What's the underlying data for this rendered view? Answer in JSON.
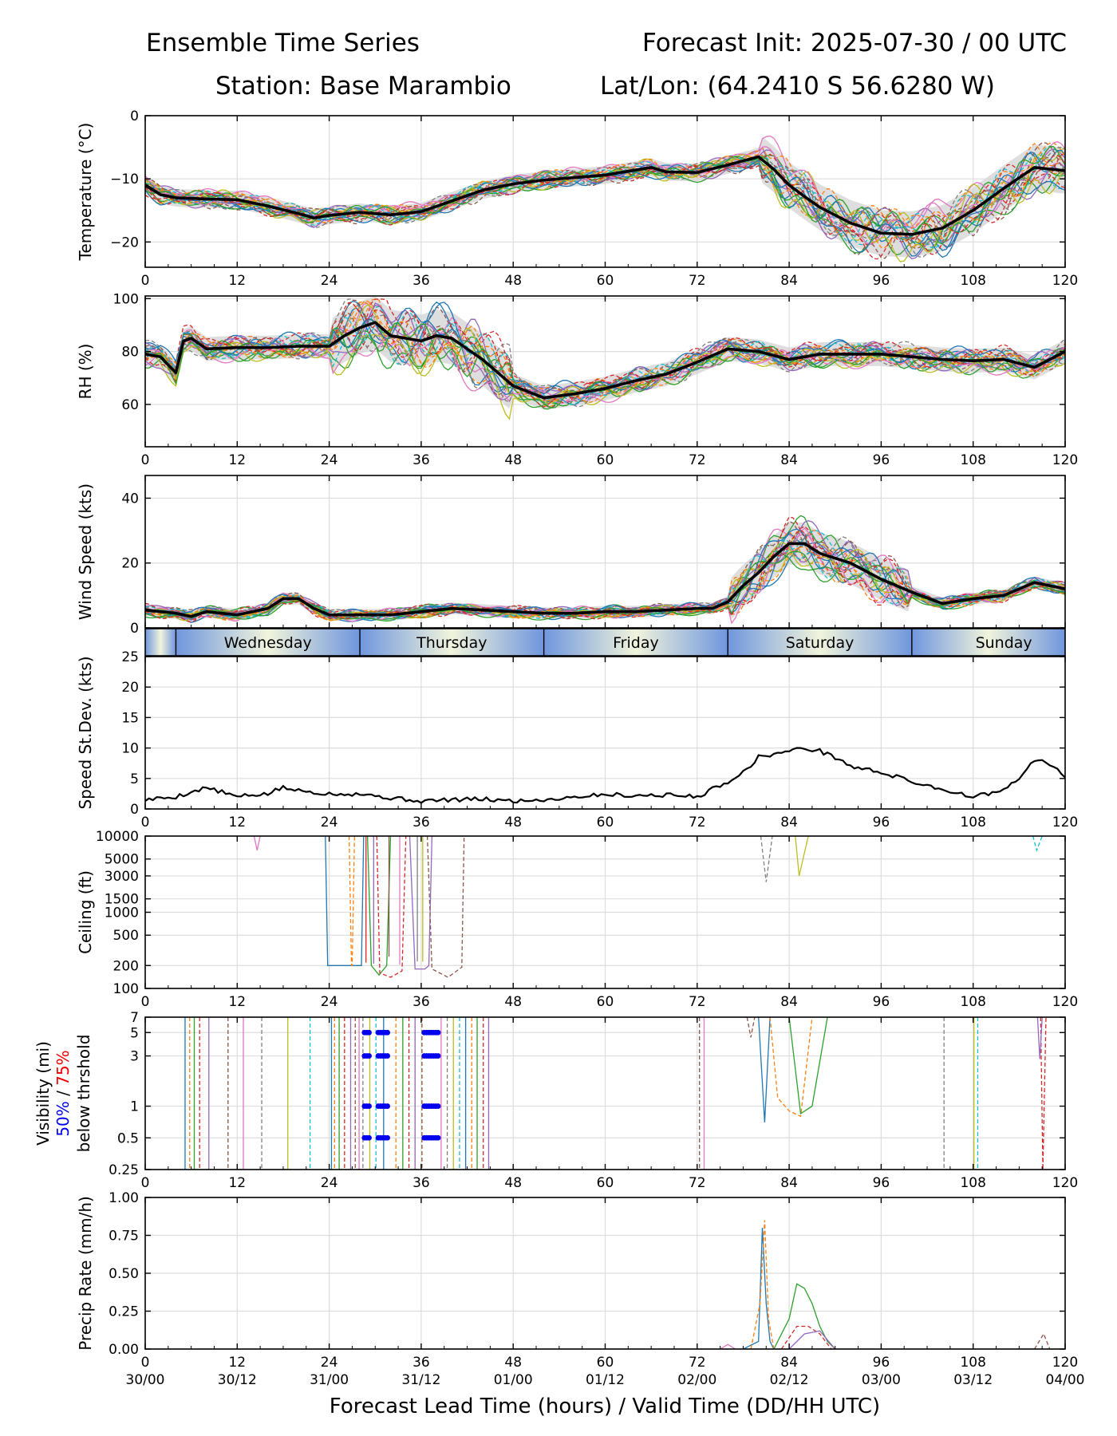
{
  "titles": {
    "left1": "Ensemble Time Series",
    "right1": "Forecast Init: 2025-07-30 / 00 UTC",
    "left2": "Station: Base Marambio",
    "right2": "Lat/Lon: (64.2410 S 56.6280 W)"
  },
  "x_axis": {
    "range": [
      0,
      120
    ],
    "ticks": [
      0,
      12,
      24,
      36,
      48,
      60,
      72,
      84,
      96,
      108,
      120
    ],
    "valid_time_labels": [
      "30/00",
      "30/12",
      "31/00",
      "31/12",
      "01/00",
      "01/12",
      "02/00",
      "02/12",
      "03/00",
      "03/12",
      "04/00"
    ],
    "label": "Forecast Lead Time (hours) / Valid Time (DD/HH UTC)"
  },
  "day_band": {
    "days": [
      {
        "name": "Wednesday",
        "start": 4,
        "end": 28
      },
      {
        "name": "Thursday",
        "start": 28,
        "end": 52
      },
      {
        "name": "Friday",
        "start": 52,
        "end": 76
      },
      {
        "name": "Saturday",
        "start": 76,
        "end": 100
      },
      {
        "name": "Sunday",
        "start": 100,
        "end": 124
      }
    ]
  },
  "member_colors": [
    "#1f77b4",
    "#ff7f0e",
    "#2ca02c",
    "#d62728",
    "#9467bd",
    "#8c564b",
    "#e377c2",
    "#7f7f7f",
    "#bcbd22",
    "#17becf"
  ],
  "chart_data": [
    {
      "type": "line",
      "ylabel": "Temperature (°C)",
      "ylim": [
        -24,
        0
      ],
      "yticks": [
        0,
        -10,
        -20
      ],
      "ytick_labels": [
        "0",
        "−10",
        "−20"
      ],
      "grid": true,
      "spread_shading": true,
      "series": [
        {
          "x": [
            0,
            2,
            4,
            8,
            12,
            16,
            20,
            22,
            24,
            28,
            32,
            36,
            40,
            44,
            48,
            52,
            56,
            60,
            64,
            66,
            68,
            72,
            76,
            80,
            82,
            84,
            86,
            88,
            92,
            96,
            100,
            104,
            108,
            112,
            116,
            120
          ],
          "values": [
            -11,
            -12.5,
            -13,
            -13.2,
            -13.3,
            -14.3,
            -15.5,
            -16.2,
            -15.8,
            -15.3,
            -15.7,
            -15.2,
            -13.5,
            -11.8,
            -10.8,
            -10.2,
            -9.8,
            -9.4,
            -8.6,
            -8.2,
            -8.9,
            -9,
            -7.8,
            -6.5,
            -8.5,
            -11,
            -12.8,
            -14.5,
            -17,
            -18.6,
            -18.8,
            -17.8,
            -15,
            -11.5,
            -8.2,
            -8.7
          ]
        }
      ]
    },
    {
      "type": "line",
      "ylabel": "RH (%)",
      "ylim": [
        44,
        101
      ],
      "yticks": [
        100,
        80,
        60
      ],
      "ytick_labels": [
        "100",
        "80",
        "60"
      ],
      "grid": true,
      "spread_shading": true,
      "series": [
        {
          "x": [
            0,
            2,
            3,
            4,
            5,
            6,
            8,
            12,
            16,
            20,
            24,
            26,
            28,
            30,
            32,
            36,
            38,
            40,
            44,
            48,
            52,
            56,
            60,
            64,
            68,
            72,
            76,
            80,
            84,
            88,
            96,
            104,
            108,
            112,
            116,
            120
          ],
          "values": [
            79,
            78,
            75,
            72,
            84,
            85,
            81,
            81.5,
            81.5,
            82,
            82,
            86,
            89,
            91,
            86,
            84,
            86,
            85,
            77,
            67,
            62.5,
            64,
            66,
            69,
            71.5,
            76,
            81,
            80,
            77,
            79,
            79,
            77,
            76.5,
            77,
            74,
            80
          ]
        }
      ]
    },
    {
      "type": "line",
      "ylabel": "Wind Speed (kts)",
      "ylim": [
        0,
        47
      ],
      "yticks": [
        0,
        20,
        40
      ],
      "ytick_labels": [
        "0",
        "20",
        "40"
      ],
      "grid": true,
      "spread_shading": true,
      "series": [
        {
          "x": [
            0,
            4,
            6,
            8,
            12,
            16,
            18,
            20,
            22,
            24,
            28,
            32,
            36,
            40,
            44,
            48,
            52,
            56,
            60,
            64,
            68,
            72,
            74,
            76,
            78,
            80,
            82,
            84,
            86,
            88,
            92,
            96,
            100,
            104,
            108,
            112,
            116,
            120
          ],
          "values": [
            5.5,
            4.5,
            3.5,
            5,
            4,
            6,
            9,
            9,
            6,
            4,
            4,
            4,
            5,
            6,
            5.5,
            5,
            4.5,
            4.5,
            5,
            5,
            5.5,
            6,
            6,
            8,
            13,
            17,
            22,
            26,
            26,
            23,
            20,
            15,
            11,
            7.5,
            9,
            10,
            14,
            12
          ]
        }
      ]
    },
    {
      "type": "line",
      "ylabel": "Speed St.Dev. (kts)",
      "ylim": [
        0,
        25
      ],
      "yticks": [
        0,
        5,
        10,
        15,
        20,
        25
      ],
      "ytick_labels": [
        "0",
        "5",
        "10",
        "15",
        "20",
        "25"
      ],
      "grid": true,
      "series": [
        {
          "x": [
            0,
            4,
            8,
            12,
            16,
            18,
            20,
            24,
            28,
            32,
            36,
            40,
            44,
            48,
            52,
            56,
            60,
            64,
            68,
            72,
            76,
            78,
            80,
            82,
            84,
            86,
            88,
            90,
            92,
            96,
            100,
            104,
            108,
            112,
            114,
            116,
            118,
            120
          ],
          "values": [
            1.5,
            2,
            3.5,
            2,
            2.5,
            3.5,
            3,
            2.5,
            2.5,
            1.8,
            1.3,
            1.5,
            1.6,
            1.3,
            1.5,
            2,
            2.4,
            2.2,
            2.3,
            2,
            4.5,
            6,
            8.5,
            9,
            9.5,
            10,
            9.5,
            8.5,
            7,
            6,
            4.5,
            3.2,
            2,
            3,
            5,
            8,
            7.5,
            5
          ]
        }
      ]
    },
    {
      "type": "line",
      "scale": "log",
      "ylabel": "Ceiling (ft)",
      "ylim": [
        100,
        10000
      ],
      "yticks": [
        10000,
        5000,
        3000,
        1500,
        1000,
        500,
        200,
        100
      ],
      "ytick_labels": [
        "10000",
        "5000",
        "3000",
        "1500",
        "1000",
        "500",
        "200",
        "100"
      ],
      "grid": true,
      "series": [
        {
          "x": [
            23.5,
            23.8,
            28.2,
            28.5
          ],
          "values": [
            10000,
            200,
            200,
            10000
          ]
        },
        {
          "x": [
            26.6,
            26.9,
            27.0,
            27.3
          ],
          "values": [
            10000,
            200,
            200,
            10000
          ]
        },
        {
          "x": [
            29,
            29.5,
            30.5,
            31.5,
            32
          ],
          "values": [
            10000,
            200,
            150,
            200,
            10000
          ]
        },
        {
          "x": [
            30.2,
            30.6,
            32,
            33.5,
            34
          ],
          "values": [
            10000,
            160,
            140,
            170,
            10000
          ]
        },
        {
          "x": [
            34.5,
            35.2,
            36.5,
            37,
            37.4
          ],
          "values": [
            10000,
            180,
            180,
            200,
            10000
          ]
        },
        {
          "x": [
            36.8,
            37.4,
            39.5,
            41.3,
            41.6
          ],
          "values": [
            10000,
            180,
            140,
            190,
            10000
          ]
        },
        {
          "x": [
            14.2,
            14.6,
            15
          ],
          "values": [
            10000,
            6500,
            10000
          ]
        },
        {
          "x": [
            80.3,
            81,
            81.8
          ],
          "values": [
            10000,
            2500,
            10000
          ]
        },
        {
          "x": [
            84.8,
            85.3,
            86.5
          ],
          "values": [
            10000,
            3000,
            10000
          ]
        },
        {
          "x": [
            115.8,
            116.3,
            117
          ],
          "values": [
            10000,
            6500,
            10000
          ]
        }
      ]
    },
    {
      "type": "line",
      "scale": "log",
      "ylabel": "Visibility (mi)",
      "ylabel_50": "50%",
      "ylabel_sep": " / ",
      "ylabel_75": "75%",
      "ylabel2": "below thrshold",
      "ylim": [
        0.25,
        7
      ],
      "yticks": [
        7,
        5,
        3,
        1,
        0.5,
        0.25
      ],
      "ytick_labels": [
        "7",
        "5",
        "3",
        "1",
        "0.5",
        "0.25"
      ],
      "grid": true,
      "threshold_levels": [
        5,
        3,
        1,
        0.5
      ],
      "threshold_points": [
        28.6,
        28.9,
        29.2,
        30.4,
        30.7,
        31.0,
        31.3,
        31.6,
        36.4,
        36.7,
        37.0,
        37.3,
        37.6,
        37.9,
        38.2
      ],
      "series": [
        {
          "x": [
            80,
            80.8,
            81.5
          ],
          "values": [
            7,
            0.7,
            7
          ]
        },
        {
          "x": [
            81.5,
            82.5,
            84,
            85.5,
            87
          ],
          "values": [
            7,
            1.2,
            0.9,
            0.8,
            7
          ]
        },
        {
          "x": [
            84,
            85.5,
            87,
            89
          ],
          "values": [
            7,
            0.85,
            1,
            7
          ]
        },
        {
          "x": [
            116.8,
            117.1,
            117.5
          ],
          "values": [
            7,
            0.25,
            7
          ]
        },
        {
          "x": [
            116.4,
            116.7,
            117
          ],
          "values": [
            7,
            2.8,
            7
          ]
        },
        {
          "x": [
            78.5,
            79,
            79.5
          ],
          "values": [
            7,
            4.5,
            7
          ]
        }
      ]
    },
    {
      "type": "line",
      "ylabel": "Precip Rate (mm/h)",
      "ylim": [
        0,
        1
      ],
      "yticks": [
        0,
        0.25,
        0.5,
        0.75,
        1
      ],
      "ytick_labels": [
        "0.00",
        "0.25",
        "0.50",
        "0.75",
        "1.00"
      ],
      "grid": true,
      "series": [
        {
          "x": [
            78,
            80,
            80.5,
            81,
            81.5,
            82
          ],
          "values": [
            0,
            0.05,
            0.8,
            0.3,
            0.05,
            0
          ]
        },
        {
          "x": [
            79,
            80.2,
            80.8,
            81.3,
            82
          ],
          "values": [
            0,
            0.3,
            0.85,
            0.2,
            0
          ]
        },
        {
          "x": [
            82,
            84,
            85,
            86,
            87,
            88,
            89,
            90
          ],
          "values": [
            0,
            0.2,
            0.43,
            0.4,
            0.3,
            0.15,
            0.05,
            0
          ]
        },
        {
          "x": [
            83,
            85,
            86.5,
            88,
            89.5
          ],
          "values": [
            0,
            0.15,
            0.15,
            0.1,
            0
          ]
        },
        {
          "x": [
            84,
            86,
            88,
            90
          ],
          "values": [
            0,
            0.1,
            0.12,
            0
          ]
        },
        {
          "x": [
            116,
            117.2,
            118
          ],
          "values": [
            0,
            0.1,
            0
          ]
        },
        {
          "x": [
            75,
            76,
            77
          ],
          "values": [
            0,
            0.03,
            0
          ]
        }
      ]
    }
  ]
}
